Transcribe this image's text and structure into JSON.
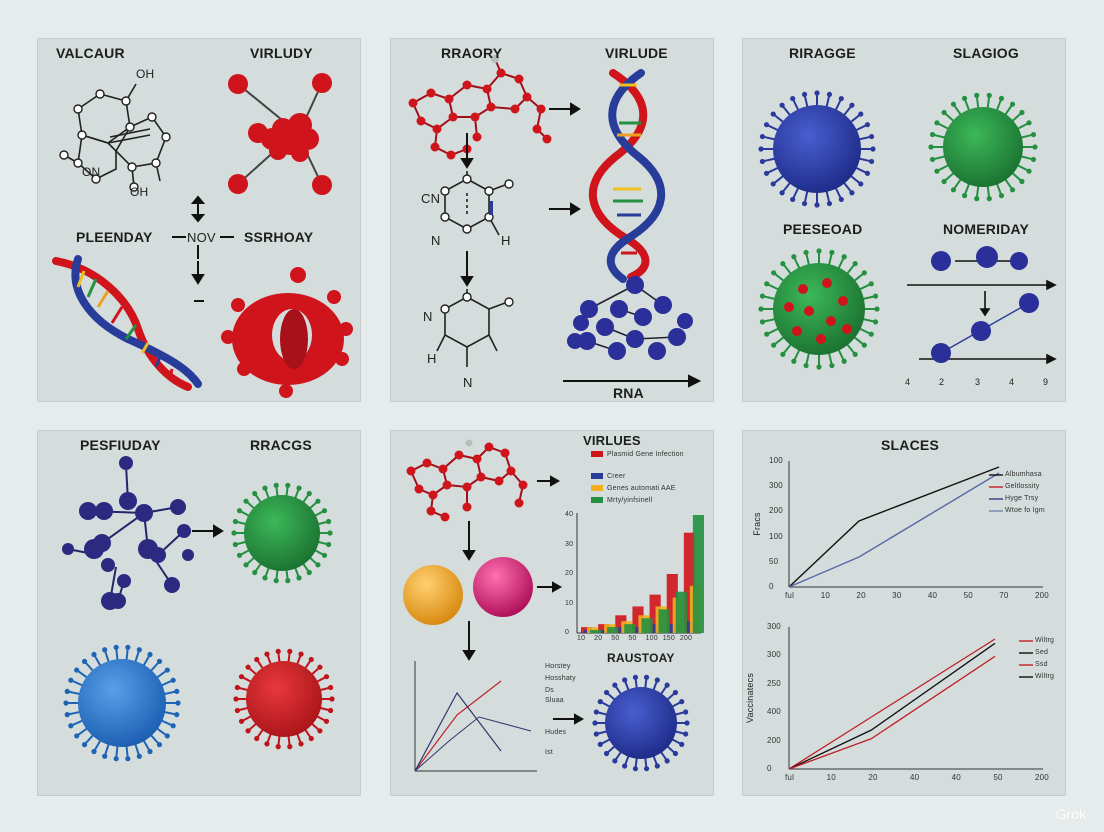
{
  "panels": {
    "p1": {
      "title_left": "VALCAUR",
      "title_right": "VIRLUDY",
      "label_left": "PLEENDAY",
      "label_mid": "NOV",
      "label_right": "SSRHOAY",
      "atom_oh_top": "OH",
      "atom_on": "ON",
      "atom_oh_bottom": "OH"
    },
    "p2": {
      "title_left": "RRAORY",
      "title_right": "VIRLUDE",
      "atom_cn": "CN",
      "atom_n1": "N",
      "atom_h1": "H",
      "atom_n2": "N",
      "atom_h2": "H",
      "atom_n3": "N",
      "rna_label": "RNA"
    },
    "p3": {
      "title_left": "RIRAGGE",
      "title_right": "SLAGIOG",
      "label_left": "PEESEOAD",
      "label_right": "NOMERIDAY",
      "axis_ticks": [
        "4",
        "2",
        "3",
        "4",
        "9"
      ]
    },
    "p4": {
      "title_left": "PESFIUDAY",
      "title_right": "RRACGS"
    },
    "p5": {
      "title": "VIRLUES",
      "legend": [
        "Plasmid Gene Infection",
        "Creer",
        "Genes automati AAE",
        "Mrty/yinfsinell"
      ],
      "label_bottom": "RAUSTOAY",
      "bar_ticks_x": [
        "10",
        "20",
        "50",
        "50",
        "100",
        "150",
        "200"
      ],
      "bar_ticks_y": [
        "40",
        "30",
        "20",
        "10",
        "0"
      ],
      "line_legend": [
        "Horstey",
        "Hosshaty",
        "Ds",
        "Sluaa",
        "Hudes",
        "Ist"
      ]
    },
    "p6": {
      "title": "SLACES",
      "top_ylabel": "Fracs",
      "top_yticks": [
        "100",
        "300",
        "200",
        "100",
        "50",
        "0"
      ],
      "top_xticks": [
        "ful",
        "10",
        "20",
        "30",
        "40",
        "50",
        "70",
        "200"
      ],
      "top_legend": [
        "Albumhasa",
        "Geltlossity",
        "Hyge Trsy",
        "Wtoe fo Igm"
      ],
      "bottom_ylabel": "Vaccinatecs",
      "bottom_yticks": [
        "300",
        "300",
        "250",
        "400",
        "200",
        "0"
      ],
      "bottom_xticks": [
        "ful",
        "10",
        "20",
        "40",
        "40",
        "50",
        "200"
      ],
      "bottom_legend": [
        "Wiltrg",
        "Sed",
        "Ssd",
        "Wiltrg"
      ]
    }
  },
  "watermark": "Grok",
  "colors": {
    "background": "#e6ebeb",
    "panel": "#d4dcdc",
    "red": "#d0141c",
    "blue": "#283c9a",
    "green": "#249040",
    "orange": "#f0a020",
    "magenta": "#d01c6c"
  },
  "chart_data": [
    {
      "type": "bar",
      "categories": [
        "10",
        "20",
        "50",
        "50",
        "100",
        "150",
        "200"
      ],
      "series": [
        {
          "name": "Plasmid Gene Infection",
          "values": [
            2,
            3,
            6,
            9,
            13,
            20,
            34
          ]
        },
        {
          "name": "Creer",
          "values": [
            1,
            1,
            2,
            2,
            3,
            3,
            4
          ]
        },
        {
          "name": "Genes automati AAE",
          "values": [
            2,
            3,
            4,
            6,
            9,
            12,
            16
          ]
        },
        {
          "name": "Mrty/yinfsinell",
          "values": [
            1,
            2,
            3,
            5,
            8,
            14,
            40
          ]
        }
      ],
      "ylim": [
        0,
        40
      ]
    },
    {
      "type": "line",
      "title": "SLACES",
      "ylabel": "Fracs",
      "x": [
        0,
        30,
        90
      ],
      "series": [
        {
          "name": "Albumhasa",
          "values": [
            0,
            55,
            100
          ]
        },
        {
          "name": "Hyge Trsy",
          "values": [
            0,
            25,
            95
          ]
        }
      ]
    },
    {
      "type": "line",
      "ylabel": "Vaccinatecs",
      "x": [
        0,
        20,
        50
      ],
      "series": [
        {
          "name": "Wiltrg",
          "values": [
            0,
            120,
            300
          ]
        },
        {
          "name": "Sed",
          "values": [
            0,
            90,
            290
          ]
        },
        {
          "name": "Ssd",
          "values": [
            0,
            70,
            260
          ]
        }
      ]
    }
  ]
}
